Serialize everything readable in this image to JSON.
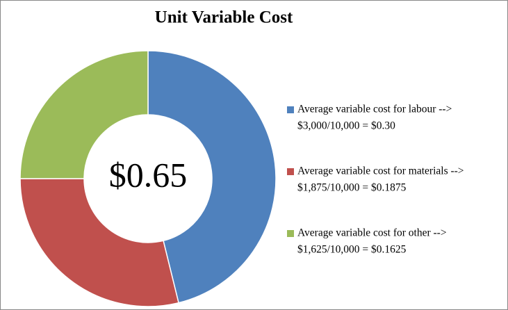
{
  "chart_data": {
    "type": "donut",
    "title": "Unit Variable Cost",
    "center_label": "$0.65",
    "categories": [
      "Average variable cost for labour -->",
      "Average variable cost for materials -->",
      "Average variable cost for other -->"
    ],
    "values": [
      0.3,
      0.1875,
      0.1625
    ],
    "value_labels": [
      "$3,000/10,000 = $0.30",
      "$1,875/10,000 = $0.1875",
      "$1,625/10,000 = $0.1625"
    ],
    "colors": [
      "#4f81bd",
      "#c0504d",
      "#9bbb59"
    ],
    "legend": "right"
  }
}
